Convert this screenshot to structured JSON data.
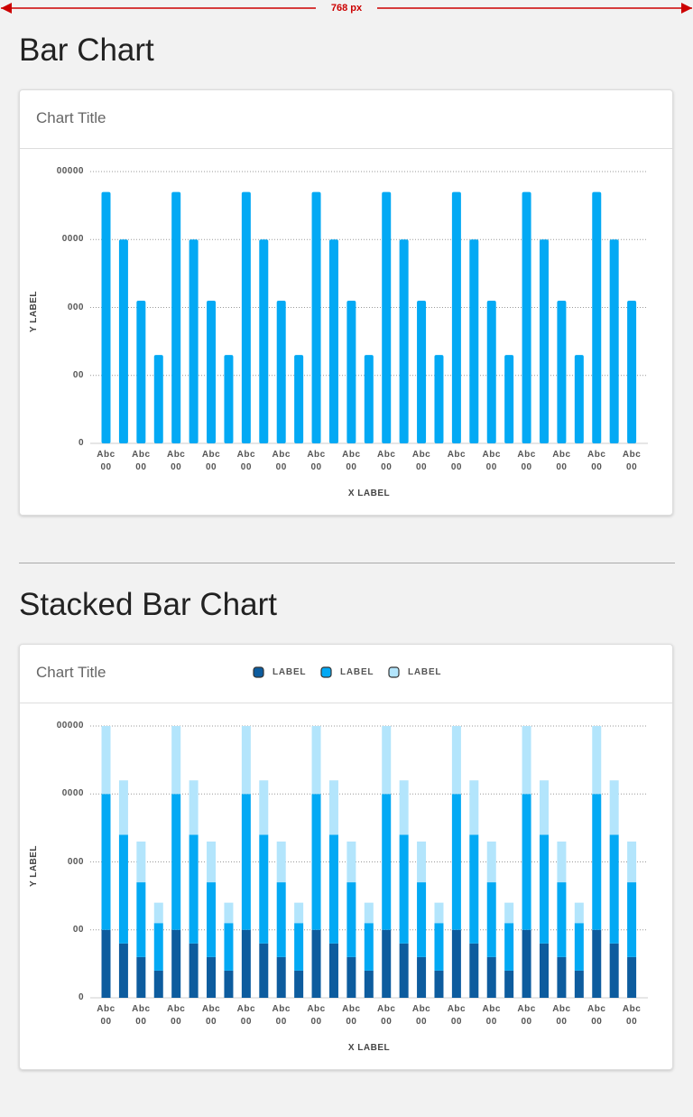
{
  "page": {
    "dimension_label": "768 px",
    "sections": [
      {
        "heading": "Bar Chart"
      },
      {
        "heading": "Stacked Bar Chart"
      }
    ]
  },
  "chart_data": [
    {
      "type": "bar",
      "title": "Chart Title",
      "x_label": "X LABEL",
      "y_label": "Y LABEL",
      "categories": [
        "Abc\n00",
        null,
        "Abc\n00",
        null,
        "Abc\n00",
        null,
        "Abc\n00",
        null,
        "Abc\n00",
        null,
        "Abc\n00",
        null,
        "Abc\n00",
        null,
        "Abc\n00",
        null,
        "Abc\n00",
        null,
        "Abc\n00",
        null,
        "Abc\n00",
        null,
        "Abc\n00",
        null,
        "Abc\n00",
        null,
        "Abc\n00",
        null,
        "Abc\n00",
        null,
        "Abc\n00"
      ],
      "values": [
        3.7,
        3,
        2.1,
        1.3,
        3.7,
        3,
        2.1,
        1.3,
        3.7,
        3,
        2.1,
        1.3,
        3.7,
        3,
        2.1,
        1.3,
        3.7,
        3,
        2.1,
        1.3,
        3.7,
        3,
        2.1,
        1.3,
        3.7,
        3,
        2.1,
        1.3,
        3.7,
        3,
        2.1
      ],
      "color": "#03a9f4",
      "ylim": [
        0,
        4
      ],
      "yticks": [
        0,
        {
          "value": 1,
          "label": "00"
        },
        {
          "value": 2,
          "label": "000"
        },
        {
          "value": 3,
          "label": "0000"
        },
        {
          "value": 4,
          "label": "00000"
        }
      ],
      "grid": true
    },
    {
      "type": "stacked_bar",
      "title": "Chart Title",
      "x_label": "X LABEL",
      "y_label": "Y LABEL",
      "categories": [
        "Abc\n00",
        null,
        "Abc\n00",
        null,
        "Abc\n00",
        null,
        "Abc\n00",
        null,
        "Abc\n00",
        null,
        "Abc\n00",
        null,
        "Abc\n00",
        null,
        "Abc\n00",
        null,
        "Abc\n00",
        null,
        "Abc\n00",
        null,
        "Abc\n00",
        null,
        "Abc\n00",
        null,
        "Abc\n00",
        null,
        "Abc\n00",
        null,
        "Abc\n00",
        null,
        "Abc\n00"
      ],
      "series": [
        {
          "name": "LABEL",
          "color": "#0d5c9e",
          "values": [
            1,
            0.8,
            0.6,
            0.4,
            1,
            0.8,
            0.6,
            0.4,
            1,
            0.8,
            0.6,
            0.4,
            1,
            0.8,
            0.6,
            0.4,
            1,
            0.8,
            0.6,
            0.4,
            1,
            0.8,
            0.6,
            0.4,
            1,
            0.8,
            0.6,
            0.4,
            1,
            0.8,
            0.6
          ]
        },
        {
          "name": "LABEL",
          "color": "#03a9f4",
          "values": [
            2,
            1.6,
            1.1,
            0.7,
            2,
            1.6,
            1.1,
            0.7,
            2,
            1.6,
            1.1,
            0.7,
            2,
            1.6,
            1.1,
            0.7,
            2,
            1.6,
            1.1,
            0.7,
            2,
            1.6,
            1.1,
            0.7,
            2,
            1.6,
            1.1,
            0.7,
            2,
            1.6,
            1.1
          ]
        },
        {
          "name": "LABEL",
          "color": "#b3e5fc",
          "values": [
            1,
            0.8,
            0.6,
            0.3,
            1,
            0.8,
            0.6,
            0.3,
            1,
            0.8,
            0.6,
            0.3,
            1,
            0.8,
            0.6,
            0.3,
            1,
            0.8,
            0.6,
            0.3,
            1,
            0.8,
            0.6,
            0.3,
            1,
            0.8,
            0.6,
            0.3,
            1,
            0.8,
            0.6
          ]
        }
      ],
      "legend": "top",
      "ylim": [
        0,
        4
      ],
      "yticks": [
        0,
        {
          "value": 1,
          "label": "00"
        },
        {
          "value": 2,
          "label": "000"
        },
        {
          "value": 3,
          "label": "0000"
        },
        {
          "value": 4,
          "label": "00000"
        }
      ],
      "grid": true
    }
  ]
}
